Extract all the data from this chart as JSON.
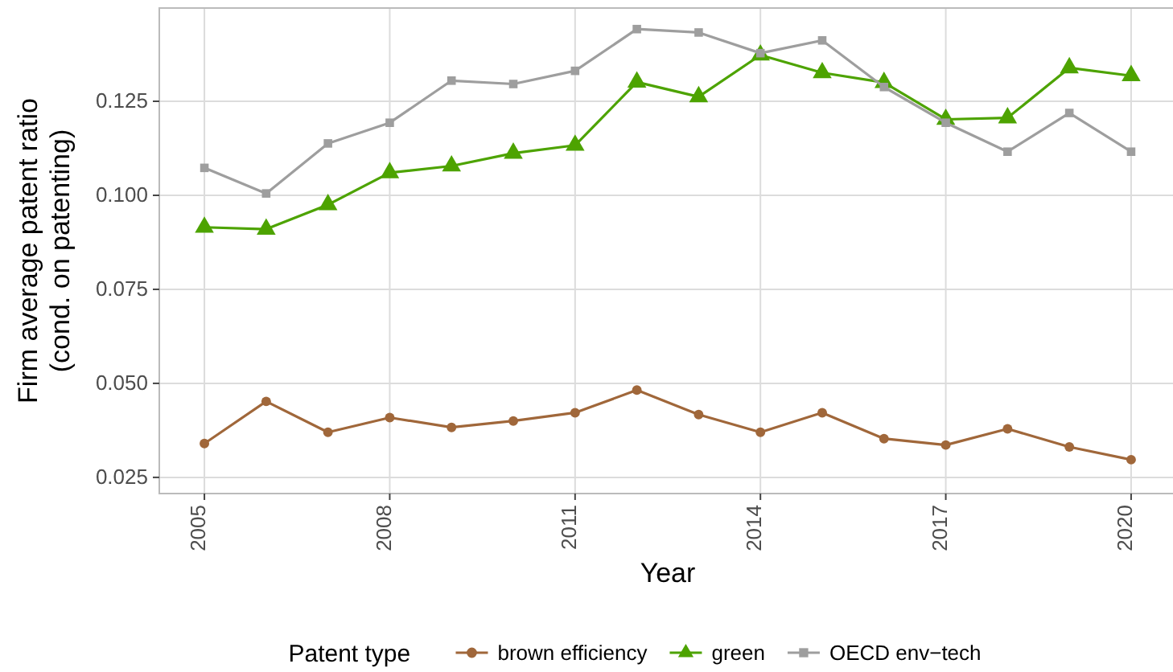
{
  "chart_data": {
    "type": "line",
    "xlabel": "Year",
    "ylabel": "Firm average patent ratio\n(cond. on patenting)",
    "legend_title": "Patent type",
    "legend": "bottom",
    "grid": true,
    "x": [
      2005,
      2006,
      2007,
      2008,
      2009,
      2010,
      2011,
      2012,
      2013,
      2014,
      2015,
      2016,
      2017,
      2018,
      2019,
      2020
    ],
    "xlim": [
      2004.27,
      2020.73
    ],
    "xticks": [
      2005,
      2008,
      2011,
      2014,
      2017,
      2020
    ],
    "ylim": [
      0.0207,
      0.1498
    ],
    "yticks": [
      {
        "value": 0.025,
        "label": "0.025"
      },
      {
        "value": 0.05,
        "label": "0.050"
      },
      {
        "value": 0.075,
        "label": "0.075"
      },
      {
        "value": 0.1,
        "label": "0.100"
      },
      {
        "value": 0.125,
        "label": "0.125"
      }
    ],
    "series": [
      {
        "name": "brown efficiency",
        "color": "#a0673a",
        "marker": "circle",
        "values": [
          0.034,
          0.0452,
          0.037,
          0.0409,
          0.0383,
          0.04,
          0.0422,
          0.0482,
          0.0417,
          0.037,
          0.0422,
          0.0353,
          0.0336,
          0.0379,
          0.0331,
          0.0297
        ]
      },
      {
        "name": "green",
        "color": "#4da300",
        "marker": "triangle",
        "values": [
          0.0915,
          0.091,
          0.0975,
          0.106,
          0.1078,
          0.1112,
          0.1133,
          0.1301,
          0.1262,
          0.1373,
          0.1326,
          0.13,
          0.1202,
          0.1206,
          0.1339,
          0.1318
        ]
      },
      {
        "name": "OECD env−tech",
        "color": "#9e9e9e",
        "marker": "square",
        "values": [
          0.1073,
          0.1005,
          0.1138,
          0.1193,
          0.1305,
          0.1296,
          0.1331,
          0.1442,
          0.1433,
          0.1378,
          0.1412,
          0.1288,
          0.1193,
          0.1116,
          0.1219,
          0.1116
        ]
      }
    ]
  }
}
